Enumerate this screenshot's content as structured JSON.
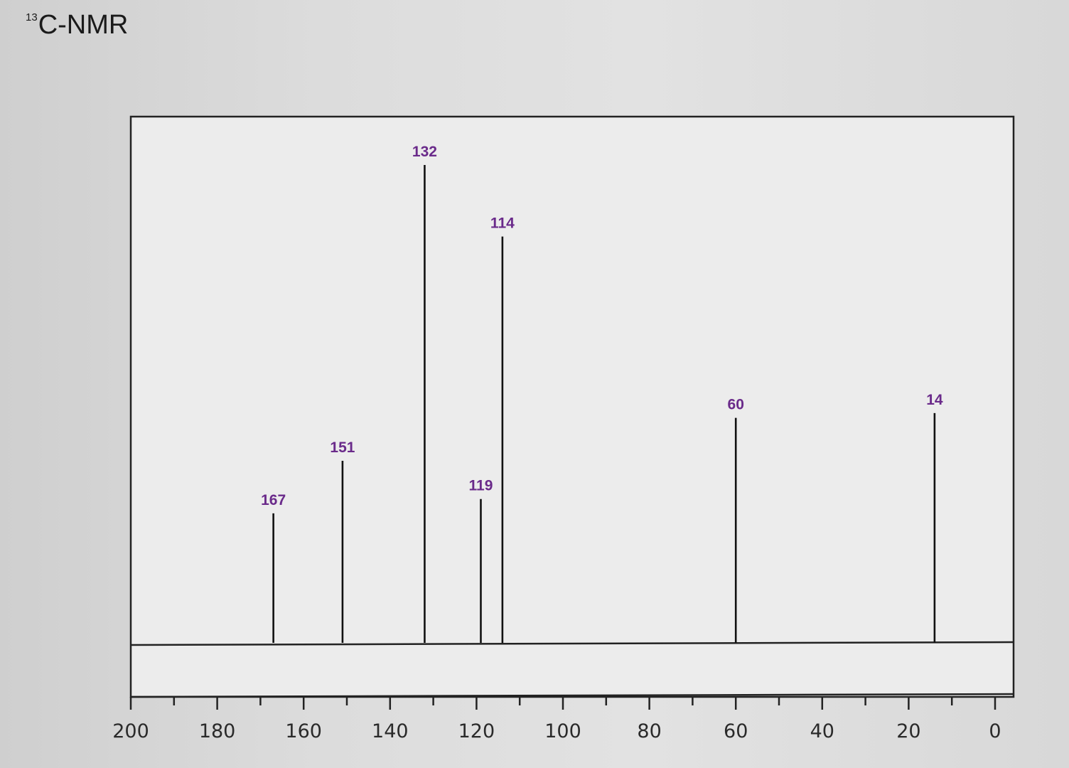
{
  "title": {
    "superscript": "13",
    "text": "C-NMR"
  },
  "chart_data": {
    "type": "bar",
    "title": "13C-NMR",
    "xlabel": "",
    "ylabel": "",
    "xlim": [
      200,
      0
    ],
    "x_reversed": true,
    "x_ticks": [
      200,
      180,
      160,
      140,
      120,
      100,
      80,
      60,
      40,
      20,
      0
    ],
    "grid": false,
    "peaks": [
      {
        "shift": 167,
        "label": "167",
        "intensity": 0.27
      },
      {
        "shift": 151,
        "label": "151",
        "intensity": 0.38
      },
      {
        "shift": 132,
        "label": "132",
        "intensity": 1.0
      },
      {
        "shift": 119,
        "label": "119",
        "intensity": 0.3
      },
      {
        "shift": 114,
        "label": "114",
        "intensity": 0.85
      },
      {
        "shift": 60,
        "label": "60",
        "intensity": 0.47
      },
      {
        "shift": 14,
        "label": "14",
        "intensity": 0.48
      }
    ],
    "colors": {
      "peak_line": "#111111",
      "peak_label": "#6a2a8a",
      "frame": "#222222",
      "plot_bg": "#ececec"
    }
  }
}
